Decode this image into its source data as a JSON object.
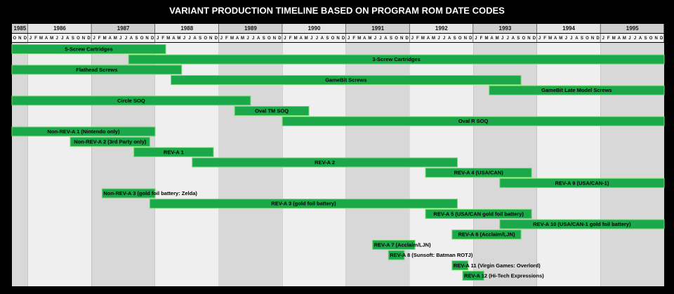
{
  "chart_data": {
    "type": "timeline",
    "title": "VARIANT PRODUCTION TIMELINE BASED ON PROGRAM ROM DATE CODES",
    "years": [
      1985,
      1986,
      1987,
      1988,
      1989,
      1990,
      1991,
      1992,
      1993,
      1994,
      1995
    ],
    "month_letters": [
      "J",
      "F",
      "M",
      "A",
      "M",
      "J",
      "J",
      "A",
      "S",
      "O",
      "N",
      "D"
    ],
    "xlim": [
      "1985-10",
      "1995-12"
    ],
    "color": "#1aa84a",
    "tasks": [
      {
        "name": "5-Screw Cartridges",
        "start": "1985-10",
        "end": "1988-02"
      },
      {
        "name": "3-Screw Cartridges",
        "start": "1987-08",
        "end": "1995-12"
      },
      {
        "name": "Flathead Screws",
        "start": "1985-10",
        "end": "1988-05"
      },
      {
        "name": "GameBit Screws",
        "start": "1988-04",
        "end": "1993-09"
      },
      {
        "name": "GameBit Late Model Screws",
        "start": "1993-04",
        "end": "1995-12"
      },
      {
        "name": "Circle SOQ",
        "start": "1985-10",
        "end": "1989-06"
      },
      {
        "name": "Oval TM SOQ",
        "start": "1989-04",
        "end": "1990-05"
      },
      {
        "name": "Oval R SOQ",
        "start": "1990-01",
        "end": "1995-12"
      },
      {
        "name": "Non-REV-A 1 (Nintendo only)",
        "start": "1985-10",
        "end": "1987-12"
      },
      {
        "name": "Non-REV-A 2 (3rd Party only)",
        "start": "1986-09",
        "end": "1987-11"
      },
      {
        "name": "REV-A 1",
        "start": "1987-09",
        "end": "1988-11"
      },
      {
        "name": "REV-A 2",
        "start": "1988-08",
        "end": "1992-09"
      },
      {
        "name": "REV-A 4 (USA/CAN)",
        "start": "1992-04",
        "end": "1993-11"
      },
      {
        "name": "REV-A 9 (USA/CAN-1)",
        "start": "1993-06",
        "end": "1995-12"
      },
      {
        "name": "Non-REV-A 3 (gold foil battery: Zelda)",
        "start": "1987-03",
        "end": "1987-12"
      },
      {
        "name": "REV-A 3 (gold foil battery)",
        "start": "1987-12",
        "end": "1992-09"
      },
      {
        "name": "REV-A 5 (USA/CAN gold foil battery)",
        "start": "1992-04",
        "end": "1993-11"
      },
      {
        "name": "REV-A 10 (USA/CAN-1 gold foil battery)",
        "start": "1993-06",
        "end": "1995-12"
      },
      {
        "name": "REV-A 6 (Acclaim/LJN)",
        "start": "1992-09",
        "end": "1993-09"
      },
      {
        "name": "REV-A 7 (Acclaim/LJN)",
        "start": "1991-06",
        "end": "1992-01"
      },
      {
        "name": "REV-A 8 (Sunsoft: Batman ROTJ)",
        "start": "1991-09",
        "end": "1991-11"
      },
      {
        "name": "REV-A 11 (Virgin Games: Overlord)",
        "start": "1992-09",
        "end": "1992-11"
      },
      {
        "name": "REV-A 12 (Hi-Tech Expressions)",
        "start": "1992-11",
        "end": "1993-02"
      }
    ]
  }
}
